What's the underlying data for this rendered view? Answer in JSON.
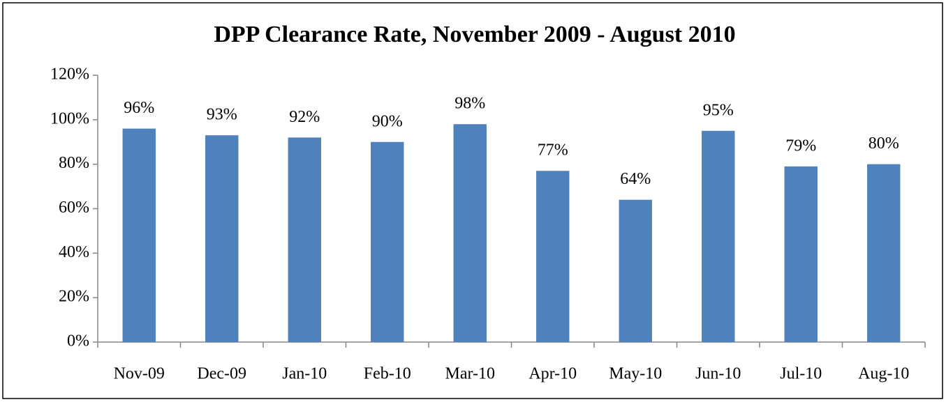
{
  "chart_data": {
    "type": "bar",
    "title": "DPP Clearance Rate, November 2009 - August 2010",
    "categories": [
      "Nov-09",
      "Dec-09",
      "Jan-10",
      "Feb-10",
      "Mar-10",
      "Apr-10",
      "May-10",
      "Jun-10",
      "Jul-10",
      "Aug-10"
    ],
    "values": [
      96,
      93,
      92,
      90,
      98,
      77,
      64,
      95,
      79,
      80
    ],
    "value_labels": [
      "96%",
      "93%",
      "92%",
      "90%",
      "98%",
      "77%",
      "64%",
      "95%",
      "79%",
      "80%"
    ],
    "color": "#4f81bd",
    "ylim": [
      0,
      120
    ],
    "yticks": [
      {
        "value": 0,
        "label": "0%"
      },
      {
        "value": 20,
        "label": "20%"
      },
      {
        "value": 40,
        "label": "40%"
      },
      {
        "value": 60,
        "label": "60%"
      },
      {
        "value": 80,
        "label": "80%"
      },
      {
        "value": 100,
        "label": "100%"
      },
      {
        "value": 120,
        "label": "120%"
      }
    ],
    "grid": false
  }
}
